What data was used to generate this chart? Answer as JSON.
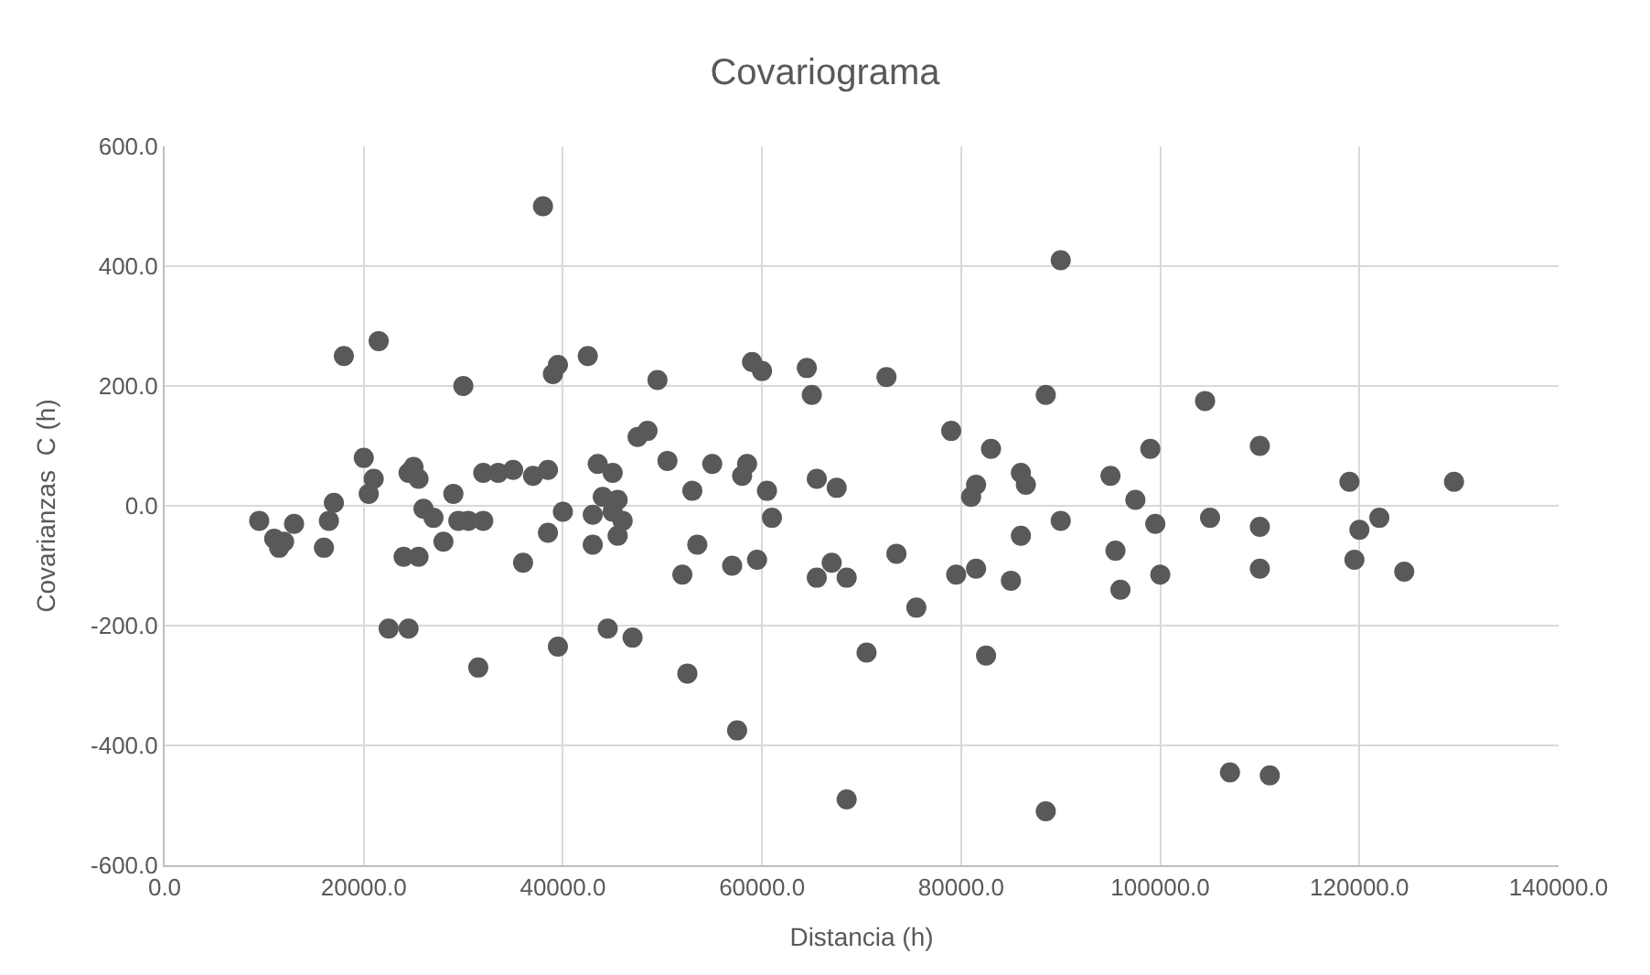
{
  "chart_data": {
    "type": "scatter",
    "title": "Covariograma",
    "xlabel": "Distancia (h)",
    "ylabel": "Covarianzas  C (h)",
    "xlim": [
      0,
      140000
    ],
    "ylim": [
      -600,
      600
    ],
    "xticks": [
      {
        "value": 0,
        "label": "0.0"
      },
      {
        "value": 20000,
        "label": "20000.0"
      },
      {
        "value": 40000,
        "label": "40000.0"
      },
      {
        "value": 60000,
        "label": "60000.0"
      },
      {
        "value": 80000,
        "label": "80000.0"
      },
      {
        "value": 100000,
        "label": "100000.0"
      },
      {
        "value": 120000,
        "label": "120000.0"
      },
      {
        "value": 140000,
        "label": "140000.0"
      }
    ],
    "yticks": [
      {
        "value": -600,
        "label": "-600.0"
      },
      {
        "value": -400,
        "label": "-400.0"
      },
      {
        "value": -200,
        "label": "-200.0"
      },
      {
        "value": 0,
        "label": "0.0"
      },
      {
        "value": 200,
        "label": "200.0"
      },
      {
        "value": 400,
        "label": "400.0"
      },
      {
        "value": 600,
        "label": "600.0"
      }
    ],
    "grid": true,
    "marker": "circle",
    "series": [
      {
        "color": "#595959",
        "x": [
          9500,
          11000,
          11500,
          12000,
          13000,
          16000,
          16500,
          17000,
          18000,
          20000,
          20500,
          21000,
          21500,
          22500,
          24000,
          24500,
          24500,
          25000,
          25500,
          25500,
          26000,
          27000,
          28000,
          29000,
          29500,
          30000,
          30500,
          31500,
          32000,
          32000,
          33500,
          35000,
          36000,
          37000,
          38000,
          38500,
          38500,
          39000,
          39500,
          39500,
          40000,
          42500,
          43000,
          43000,
          43500,
          44000,
          44500,
          45000,
          45000,
          45500,
          45500,
          46000,
          47000,
          47500,
          48500,
          49500,
          50500,
          52000,
          52500,
          53000,
          53500,
          55000,
          57000,
          57500,
          58000,
          58500,
          59000,
          59500,
          60000,
          60500,
          61000,
          64500,
          65000,
          65500,
          65500,
          67000,
          67500,
          68500,
          68500,
          70500,
          72500,
          73500,
          75500,
          79000,
          79500,
          81000,
          81500,
          81500,
          82500,
          83000,
          85000,
          86000,
          86000,
          86500,
          88500,
          88500,
          90000,
          90000,
          95000,
          95500,
          96000,
          97500,
          99000,
          99500,
          100000,
          104500,
          105000,
          107000,
          110000,
          110000,
          110000,
          111000,
          119000,
          119500,
          120000,
          122000,
          124500,
          129500
        ],
        "values": [
          -25,
          -55,
          -70,
          -60,
          -30,
          -70,
          -25,
          5,
          250,
          80,
          20,
          45,
          275,
          -205,
          -85,
          -205,
          55,
          65,
          45,
          -85,
          -5,
          -20,
          -60,
          20,
          -25,
          200,
          -25,
          -270,
          -25,
          55,
          55,
          60,
          -95,
          50,
          500,
          -45,
          60,
          220,
          235,
          -235,
          -10,
          250,
          -65,
          -15,
          70,
          15,
          -205,
          -10,
          55,
          -50,
          10,
          -25,
          -220,
          115,
          125,
          210,
          75,
          -115,
          -280,
          25,
          -65,
          70,
          -100,
          -375,
          50,
          70,
          240,
          -90,
          225,
          25,
          -20,
          230,
          185,
          -120,
          45,
          -95,
          30,
          -120,
          -490,
          -245,
          215,
          -80,
          -170,
          125,
          -115,
          15,
          35,
          -105,
          -250,
          95,
          -125,
          55,
          -50,
          35,
          185,
          -510,
          410,
          -25,
          50,
          -75,
          -140,
          10,
          95,
          -30,
          -115,
          175,
          -20,
          -445,
          100,
          -105,
          -35,
          -450,
          40,
          -90,
          -40,
          -20,
          -110,
          40
        ]
      }
    ]
  }
}
